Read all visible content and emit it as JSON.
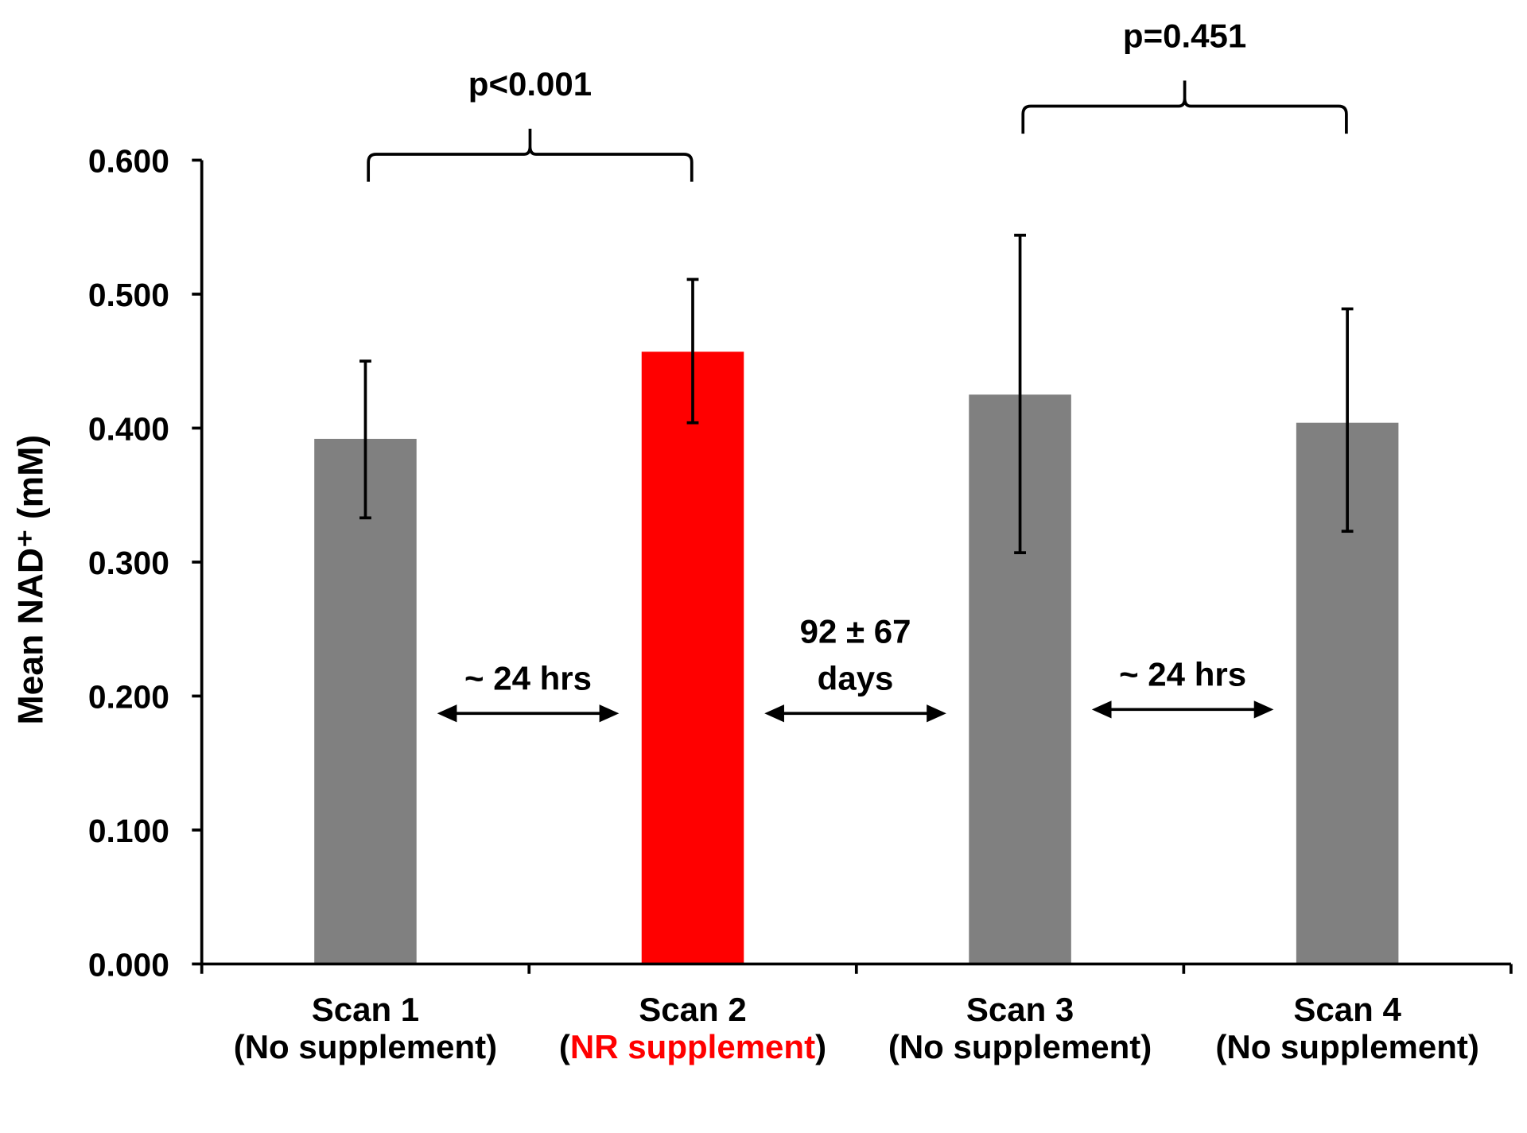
{
  "chart_data": {
    "type": "bar",
    "title": "",
    "xlabel": "",
    "ylabel": "Mean NAD⁺ (mM)",
    "ylim": [
      0,
      0.6
    ],
    "yticks": [
      "0.000",
      "0.100",
      "0.200",
      "0.300",
      "0.400",
      "0.500",
      "0.600"
    ],
    "grid": false,
    "legend": "none",
    "categories": [
      {
        "line1": "Scan 1",
        "line2_open": "(",
        "line2_main": "No supplement",
        "line2_close": ")",
        "highlight": false
      },
      {
        "line1": "Scan 2",
        "line2_open": "(",
        "line2_main": "NR supplement",
        "line2_close": ")",
        "highlight": true
      },
      {
        "line1": "Scan 3",
        "line2_open": "(",
        "line2_main": "No supplement",
        "line2_close": ")",
        "highlight": false
      },
      {
        "line1": "Scan 4",
        "line2_open": "(",
        "line2_main": "No supplement",
        "line2_close": ")",
        "highlight": false
      }
    ],
    "values": [
      0.392,
      0.457,
      0.425,
      0.404
    ],
    "error_low": [
      0.333,
      0.404,
      0.307,
      0.323
    ],
    "error_high": [
      0.45,
      0.511,
      0.544,
      0.489
    ],
    "colors": {
      "default": "#808080",
      "highlight": "#ff0000",
      "axis": "#000000"
    },
    "comparisons": [
      {
        "from": 0,
        "to": 1,
        "label": "p<0.001"
      },
      {
        "from": 2,
        "to": 3,
        "label": "p=0.451"
      }
    ],
    "intervals": [
      {
        "between": [
          0,
          1
        ],
        "lines": [
          "~ 24 hrs"
        ]
      },
      {
        "between": [
          1,
          2
        ],
        "lines": [
          "92 ±  67",
          "days"
        ]
      },
      {
        "between": [
          2,
          3
        ],
        "lines": [
          "~ 24 hrs"
        ]
      }
    ]
  }
}
